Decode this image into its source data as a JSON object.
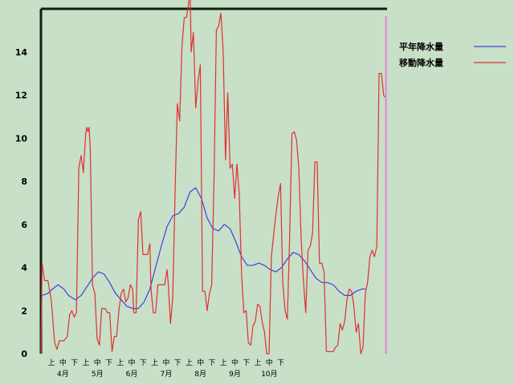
{
  "chart_data": {
    "type": "line",
    "title": "",
    "xlabel": "",
    "ylabel": "",
    "ylim": [
      0,
      16
    ],
    "yticks": [
      0,
      2,
      4,
      6,
      8,
      10,
      12,
      14
    ],
    "x_range": [
      "4月上",
      "10月下"
    ],
    "x_ticks": [
      {
        "label": "上",
        "pos": 0.5
      },
      {
        "label": "中",
        "pos": 1.5
      },
      {
        "label": "下",
        "pos": 2.5
      },
      {
        "label": "上",
        "pos": 3.5
      },
      {
        "label": "中",
        "pos": 4.5
      },
      {
        "label": "下",
        "pos": 5.5
      },
      {
        "label": "上",
        "pos": 6.5
      },
      {
        "label": "中",
        "pos": 7.5
      },
      {
        "label": "下",
        "pos": 8.5
      },
      {
        "label": "上",
        "pos": 9.5
      },
      {
        "label": "中",
        "pos": 10.5
      },
      {
        "label": "下",
        "pos": 11.5
      },
      {
        "label": "上",
        "pos": 12.5
      },
      {
        "label": "中",
        "pos": 13.5
      },
      {
        "label": "下",
        "pos": 14.5
      },
      {
        "label": "上",
        "pos": 15.5
      },
      {
        "label": "中",
        "pos": 16.5
      },
      {
        "label": "下",
        "pos": 17.5
      },
      {
        "label": "上",
        "pos": 18.5
      },
      {
        "label": "中",
        "pos": 19.5
      },
      {
        "label": "下",
        "pos": 20.5
      }
    ],
    "month_labels": [
      {
        "label": "4月",
        "pos": 1.5
      },
      {
        "label": "5月",
        "pos": 4.5
      },
      {
        "label": "6月",
        "pos": 7.5
      },
      {
        "label": "7月",
        "pos": 10.5
      },
      {
        "label": "8月",
        "pos": 13.5
      },
      {
        "label": "9月",
        "pos": 16.5
      },
      {
        "label": "10月",
        "pos": 19.5
      }
    ],
    "legend_position": "top-right",
    "grid": false,
    "series": [
      {
        "name": "平年降水量",
        "color": "#4040e0",
        "points": [
          [
            0,
            0
          ],
          [
            0.08,
            2.7
          ],
          [
            0.6,
            2.8
          ],
          [
            1,
            3.0
          ],
          [
            1.5,
            3.2
          ],
          [
            2,
            3.0
          ],
          [
            2.4,
            2.7
          ],
          [
            3,
            2.5
          ],
          [
            3.5,
            2.7
          ],
          [
            4,
            3.1
          ],
          [
            4.5,
            3.5
          ],
          [
            5,
            3.8
          ],
          [
            5.5,
            3.7
          ],
          [
            6,
            3.3
          ],
          [
            6.5,
            2.8
          ],
          [
            7,
            2.5
          ],
          [
            7.5,
            2.2
          ],
          [
            8,
            2.1
          ],
          [
            8.5,
            2.1
          ],
          [
            9,
            2.4
          ],
          [
            9.5,
            3.0
          ],
          [
            10,
            4.0
          ],
          [
            10.5,
            5.0
          ],
          [
            11,
            5.9
          ],
          [
            11.5,
            6.4
          ],
          [
            12,
            6.5
          ],
          [
            12.5,
            6.8
          ],
          [
            13,
            7.5
          ],
          [
            13.5,
            7.7
          ],
          [
            14,
            7.2
          ],
          [
            14.5,
            6.3
          ],
          [
            15,
            5.8
          ],
          [
            15.5,
            5.7
          ],
          [
            16,
            6.0
          ],
          [
            16.5,
            5.8
          ],
          [
            17,
            5.2
          ],
          [
            17.5,
            4.5
          ],
          [
            18,
            4.1
          ],
          [
            18.5,
            4.1
          ],
          [
            19,
            4.2
          ],
          [
            19.5,
            4.1
          ],
          [
            20,
            3.9
          ],
          [
            20.5,
            3.8
          ],
          [
            21,
            4.0
          ],
          [
            21.5,
            4.4
          ],
          [
            22,
            4.7
          ],
          [
            22.5,
            4.6
          ],
          [
            23,
            4.3
          ],
          [
            23.5,
            3.9
          ],
          [
            24,
            3.5
          ],
          [
            24.5,
            3.3
          ],
          [
            25,
            3.3
          ],
          [
            25.5,
            3.2
          ],
          [
            26,
            2.9
          ],
          [
            26.5,
            2.7
          ],
          [
            27,
            2.7
          ],
          [
            27.5,
            2.9
          ],
          [
            28,
            3.0
          ],
          [
            28.3,
            3.0
          ]
        ]
      },
      {
        "name": "移動降水量",
        "color": "#e03030",
        "points": [
          [
            0,
            0
          ],
          [
            0.1,
            4.2
          ],
          [
            0.3,
            3.4
          ],
          [
            0.6,
            3.4
          ],
          [
            0.9,
            2.5
          ],
          [
            1.2,
            0.5
          ],
          [
            1.4,
            0.2
          ],
          [
            1.6,
            0.6
          ],
          [
            2,
            0.6
          ],
          [
            2.3,
            0.8
          ],
          [
            2.5,
            1.8
          ],
          [
            2.7,
            2.0
          ],
          [
            2.9,
            1.7
          ],
          [
            3.1,
            1.9
          ],
          [
            3.3,
            8.6
          ],
          [
            3.5,
            9.2
          ],
          [
            3.7,
            8.4
          ],
          [
            3.9,
            10.2
          ],
          [
            4.0,
            10.5
          ],
          [
            4.1,
            10.3
          ],
          [
            4.2,
            10.5
          ],
          [
            4.3,
            9.5
          ],
          [
            4.5,
            3.2
          ],
          [
            4.7,
            2.8
          ],
          [
            4.9,
            0.7
          ],
          [
            5.1,
            0.4
          ],
          [
            5.3,
            2.1
          ],
          [
            5.6,
            2.1
          ],
          [
            5.8,
            1.9
          ],
          [
            6,
            1.9
          ],
          [
            6.2,
            0.1
          ],
          [
            6.4,
            0.8
          ],
          [
            6.6,
            0.8
          ],
          [
            6.8,
            2.0
          ],
          [
            7,
            2.8
          ],
          [
            7.2,
            3.0
          ],
          [
            7.4,
            2.4
          ],
          [
            7.6,
            2.6
          ],
          [
            7.8,
            3.2
          ],
          [
            8,
            3.0
          ],
          [
            8.1,
            1.9
          ],
          [
            8.3,
            1.9
          ],
          [
            8.5,
            6.2
          ],
          [
            8.7,
            6.6
          ],
          [
            8.9,
            4.6
          ],
          [
            9.1,
            4.6
          ],
          [
            9.3,
            4.6
          ],
          [
            9.5,
            5.1
          ],
          [
            9.6,
            3.0
          ],
          [
            9.8,
            1.9
          ],
          [
            10,
            1.9
          ],
          [
            10.2,
            3.2
          ],
          [
            10.4,
            3.2
          ],
          [
            10.6,
            3.2
          ],
          [
            10.8,
            3.2
          ],
          [
            11,
            3.9
          ],
          [
            11.1,
            3.3
          ],
          [
            11.3,
            1.4
          ],
          [
            11.5,
            2.6
          ],
          [
            11.7,
            7.5
          ],
          [
            11.9,
            11.6
          ],
          [
            12.1,
            10.8
          ],
          [
            12.3,
            14.2
          ],
          [
            12.5,
            15.6
          ],
          [
            12.7,
            15.6
          ],
          [
            12.9,
            16.3
          ],
          [
            13.0,
            17.5
          ],
          [
            13.1,
            14.0
          ],
          [
            13.3,
            14.9
          ],
          [
            13.5,
            11.4
          ],
          [
            13.7,
            12.6
          ],
          [
            13.9,
            13.4
          ],
          [
            14.1,
            2.9
          ],
          [
            14.3,
            2.9
          ],
          [
            14.5,
            2.0
          ],
          [
            14.7,
            2.8
          ],
          [
            14.9,
            3.2
          ],
          [
            15.1,
            8.1
          ],
          [
            15.3,
            15.0
          ],
          [
            15.5,
            15.2
          ],
          [
            15.7,
            15.8
          ],
          [
            15.9,
            14.0
          ],
          [
            16.1,
            9.0
          ],
          [
            16.3,
            12.1
          ],
          [
            16.5,
            8.6
          ],
          [
            16.7,
            8.8
          ],
          [
            16.9,
            7.2
          ],
          [
            17.1,
            8.8
          ],
          [
            17.3,
            7.4
          ],
          [
            17.5,
            3.7
          ],
          [
            17.7,
            1.9
          ],
          [
            17.9,
            2.0
          ],
          [
            18.1,
            0.5
          ],
          [
            18.3,
            0.4
          ],
          [
            18.5,
            1.3
          ],
          [
            18.7,
            1.5
          ],
          [
            18.9,
            2.3
          ],
          [
            19.1,
            2.2
          ],
          [
            19.3,
            1.5
          ],
          [
            19.5,
            1.0
          ],
          [
            19.7,
            0.0
          ],
          [
            19.9,
            0.0
          ],
          [
            20.1,
            4.5
          ],
          [
            20.3,
            5.5
          ],
          [
            20.5,
            6.5
          ],
          [
            20.7,
            7.3
          ],
          [
            20.9,
            7.9
          ],
          [
            21.1,
            3.3
          ],
          [
            21.3,
            2.0
          ],
          [
            21.5,
            1.6
          ],
          [
            21.7,
            5.5
          ],
          [
            21.9,
            10.2
          ],
          [
            22.1,
            10.3
          ],
          [
            22.3,
            9.9
          ],
          [
            22.5,
            8.6
          ],
          [
            22.7,
            5.3
          ],
          [
            22.9,
            3.4
          ],
          [
            23.1,
            1.9
          ],
          [
            23.3,
            4.8
          ],
          [
            23.5,
            5.0
          ],
          [
            23.7,
            5.6
          ],
          [
            23.9,
            8.9
          ],
          [
            24.1,
            8.9
          ],
          [
            24.3,
            4.2
          ],
          [
            24.5,
            4.2
          ],
          [
            24.7,
            3.8
          ],
          [
            24.9,
            0.1
          ],
          [
            25.1,
            0.1
          ],
          [
            25.3,
            0.1
          ],
          [
            25.5,
            0.1
          ],
          [
            25.7,
            0.3
          ],
          [
            25.9,
            0.4
          ],
          [
            26.1,
            1.4
          ],
          [
            26.3,
            1.1
          ],
          [
            26.5,
            1.5
          ],
          [
            26.7,
            2.5
          ],
          [
            26.9,
            3.0
          ],
          [
            27.1,
            2.9
          ],
          [
            27.3,
            2.2
          ],
          [
            27.5,
            1.0
          ],
          [
            27.7,
            1.4
          ],
          [
            27.9,
            0.0
          ],
          [
            28.1,
            0.3
          ],
          [
            28.3,
            2.8
          ],
          [
            28.5,
            3.3
          ],
          [
            28.7,
            4.5
          ],
          [
            28.9,
            4.8
          ],
          [
            29.1,
            4.5
          ],
          [
            29.3,
            5.0
          ],
          [
            29.5,
            13.0
          ],
          [
            29.7,
            13.0
          ],
          [
            29.9,
            12.0
          ],
          [
            30.0,
            11.9
          ]
        ]
      }
    ],
    "marker_line": {
      "color": "#e080e0",
      "x": 30.1
    }
  }
}
